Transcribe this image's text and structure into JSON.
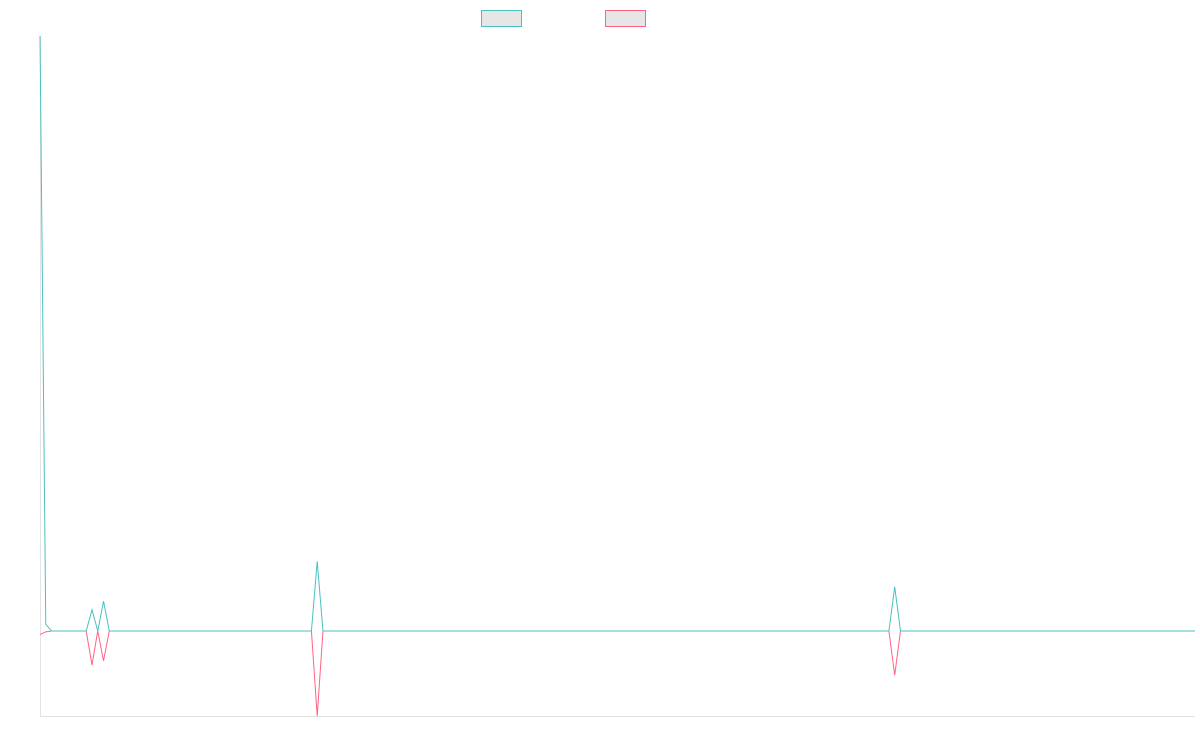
{
  "chart_data": {
    "type": "line",
    "title": "",
    "xlabel": "",
    "ylabel": "",
    "grid": false,
    "legend_position": "top-center",
    "x": [
      0,
      1,
      2,
      3,
      4,
      5,
      6,
      7,
      8,
      9,
      10,
      11,
      12,
      13,
      14,
      15,
      16,
      17,
      18,
      19,
      20,
      21,
      22,
      23,
      24,
      25,
      26,
      27,
      28,
      29,
      30,
      31,
      32,
      33,
      34,
      35,
      36,
      37,
      38,
      39,
      40,
      41,
      42,
      43,
      44,
      45,
      46,
      47,
      48,
      49,
      50,
      51,
      52,
      53,
      54,
      55,
      56,
      57,
      58,
      59,
      60,
      61,
      62,
      63,
      64,
      65,
      66,
      67,
      68,
      69,
      70,
      71,
      72,
      73,
      74,
      75,
      76,
      77,
      78,
      79,
      80,
      81,
      82,
      83,
      84,
      85,
      86,
      87,
      88,
      89,
      90,
      91,
      92,
      93,
      94,
      95,
      96,
      97,
      98,
      99,
      100,
      101,
      102,
      103,
      104,
      105,
      106,
      107,
      108,
      109,
      110,
      111,
      112,
      113,
      114,
      115,
      116,
      117,
      118,
      119,
      120,
      121,
      122,
      123,
      124,
      125,
      126,
      127,
      128,
      129,
      130,
      131,
      132,
      133,
      134,
      135,
      136,
      137,
      138,
      139,
      140,
      141,
      142,
      143,
      144,
      145,
      146,
      147,
      148,
      149,
      150,
      151,
      152,
      153,
      154,
      155,
      156,
      157,
      158,
      159,
      160,
      161,
      162,
      163,
      164,
      165,
      166,
      167,
      168,
      169,
      170,
      171,
      172,
      173,
      174,
      175,
      176,
      177,
      178,
      179,
      180,
      181,
      182,
      183,
      184,
      185,
      186,
      187,
      188,
      189,
      190,
      191,
      192,
      193,
      194,
      195,
      196,
      197,
      198,
      199,
      200
    ],
    "xlim": [
      0,
      200
    ],
    "ylim": [
      -100,
      700
    ],
    "series": [
      {
        "color": "#4bc0c0",
        "values": [
          700,
          8,
          0,
          0,
          0,
          0,
          0,
          0,
          0,
          25,
          0,
          35,
          0,
          0,
          0,
          0,
          0,
          0,
          0,
          0,
          0,
          0,
          0,
          0,
          0,
          0,
          0,
          0,
          0,
          0,
          0,
          0,
          0,
          0,
          0,
          0,
          0,
          0,
          0,
          0,
          0,
          0,
          0,
          0,
          0,
          0,
          0,
          0,
          82,
          0,
          0,
          0,
          0,
          0,
          0,
          0,
          0,
          0,
          0,
          0,
          0,
          0,
          0,
          0,
          0,
          0,
          0,
          0,
          0,
          0,
          0,
          0,
          0,
          0,
          0,
          0,
          0,
          0,
          0,
          0,
          0,
          0,
          0,
          0,
          0,
          0,
          0,
          0,
          0,
          0,
          0,
          0,
          0,
          0,
          0,
          0,
          0,
          0,
          0,
          0,
          0,
          0,
          0,
          0,
          0,
          0,
          0,
          0,
          0,
          0,
          0,
          0,
          0,
          0,
          0,
          0,
          0,
          0,
          0,
          0,
          0,
          0,
          0,
          0,
          0,
          0,
          0,
          0,
          0,
          0,
          0,
          0,
          0,
          0,
          0,
          0,
          0,
          0,
          0,
          0,
          0,
          0,
          0,
          0,
          0,
          0,
          0,
          0,
          52,
          0,
          0,
          0,
          0,
          0,
          0,
          0,
          0,
          0,
          0,
          0,
          0,
          0,
          0,
          0,
          0,
          0,
          0,
          0,
          0,
          0,
          0,
          0,
          0,
          0,
          0,
          0,
          0,
          0,
          0,
          0,
          0,
          0,
          0,
          0,
          0,
          0,
          0,
          0,
          0,
          0,
          0,
          0,
          0,
          0,
          0,
          0,
          0,
          0,
          0,
          0,
          0
        ]
      },
      {
        "color": "#ff6384",
        "values": [
          -4,
          -1,
          0,
          0,
          0,
          0,
          0,
          0,
          0,
          -40,
          0,
          -35,
          0,
          0,
          0,
          0,
          0,
          0,
          0,
          0,
          0,
          0,
          0,
          0,
          0,
          0,
          0,
          0,
          0,
          0,
          0,
          0,
          0,
          0,
          0,
          0,
          0,
          0,
          0,
          0,
          0,
          0,
          0,
          0,
          0,
          0,
          0,
          0,
          -100,
          0,
          0,
          0,
          0,
          0,
          0,
          0,
          0,
          0,
          0,
          0,
          0,
          0,
          0,
          0,
          0,
          0,
          0,
          0,
          0,
          0,
          0,
          0,
          0,
          0,
          0,
          0,
          0,
          0,
          0,
          0,
          0,
          0,
          0,
          0,
          0,
          0,
          0,
          0,
          0,
          0,
          0,
          0,
          0,
          0,
          0,
          0,
          0,
          0,
          0,
          0,
          0,
          0,
          0,
          0,
          0,
          0,
          0,
          0,
          0,
          0,
          0,
          0,
          0,
          0,
          0,
          0,
          0,
          0,
          0,
          0,
          0,
          0,
          0,
          0,
          0,
          0,
          0,
          0,
          0,
          0,
          0,
          0,
          0,
          0,
          0,
          0,
          0,
          0,
          0,
          0,
          0,
          0,
          0,
          0,
          0,
          0,
          0,
          0,
          -52,
          0,
          0,
          0,
          0,
          0,
          0,
          0,
          0,
          0,
          0,
          0,
          0,
          0,
          0,
          0,
          0,
          0,
          0,
          0,
          0,
          0,
          0,
          0,
          0,
          0,
          0,
          0,
          0,
          0,
          0,
          0,
          0,
          0,
          0,
          0,
          0,
          0,
          0,
          0,
          0,
          0,
          0,
          0,
          0,
          0,
          0,
          0,
          0,
          0,
          0,
          0,
          0
        ]
      }
    ]
  }
}
